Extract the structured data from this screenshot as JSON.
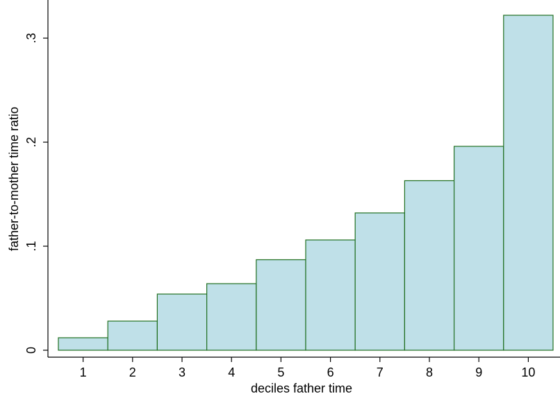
{
  "chart_data": {
    "type": "bar",
    "title": "",
    "xlabel": "deciles father time",
    "ylabel": "father-to-mother time ratio",
    "categories": [
      "1",
      "2",
      "3",
      "4",
      "5",
      "6",
      "7",
      "8",
      "9",
      "10"
    ],
    "values": [
      0.012,
      0.028,
      0.054,
      0.064,
      0.087,
      0.106,
      0.132,
      0.163,
      0.196,
      0.322
    ],
    "ylim": [
      0,
      0.33
    ],
    "yticks": [
      0,
      0.1,
      0.2,
      0.3
    ],
    "ytick_labels": [
      "0",
      ".1",
      ".2",
      ".3"
    ],
    "grid": false,
    "legend": "none",
    "colors": {
      "bar_fill": "#bfe0e8",
      "bar_stroke": "#1f6e1f",
      "axis": "#000000",
      "background": "#ffffff"
    }
  }
}
